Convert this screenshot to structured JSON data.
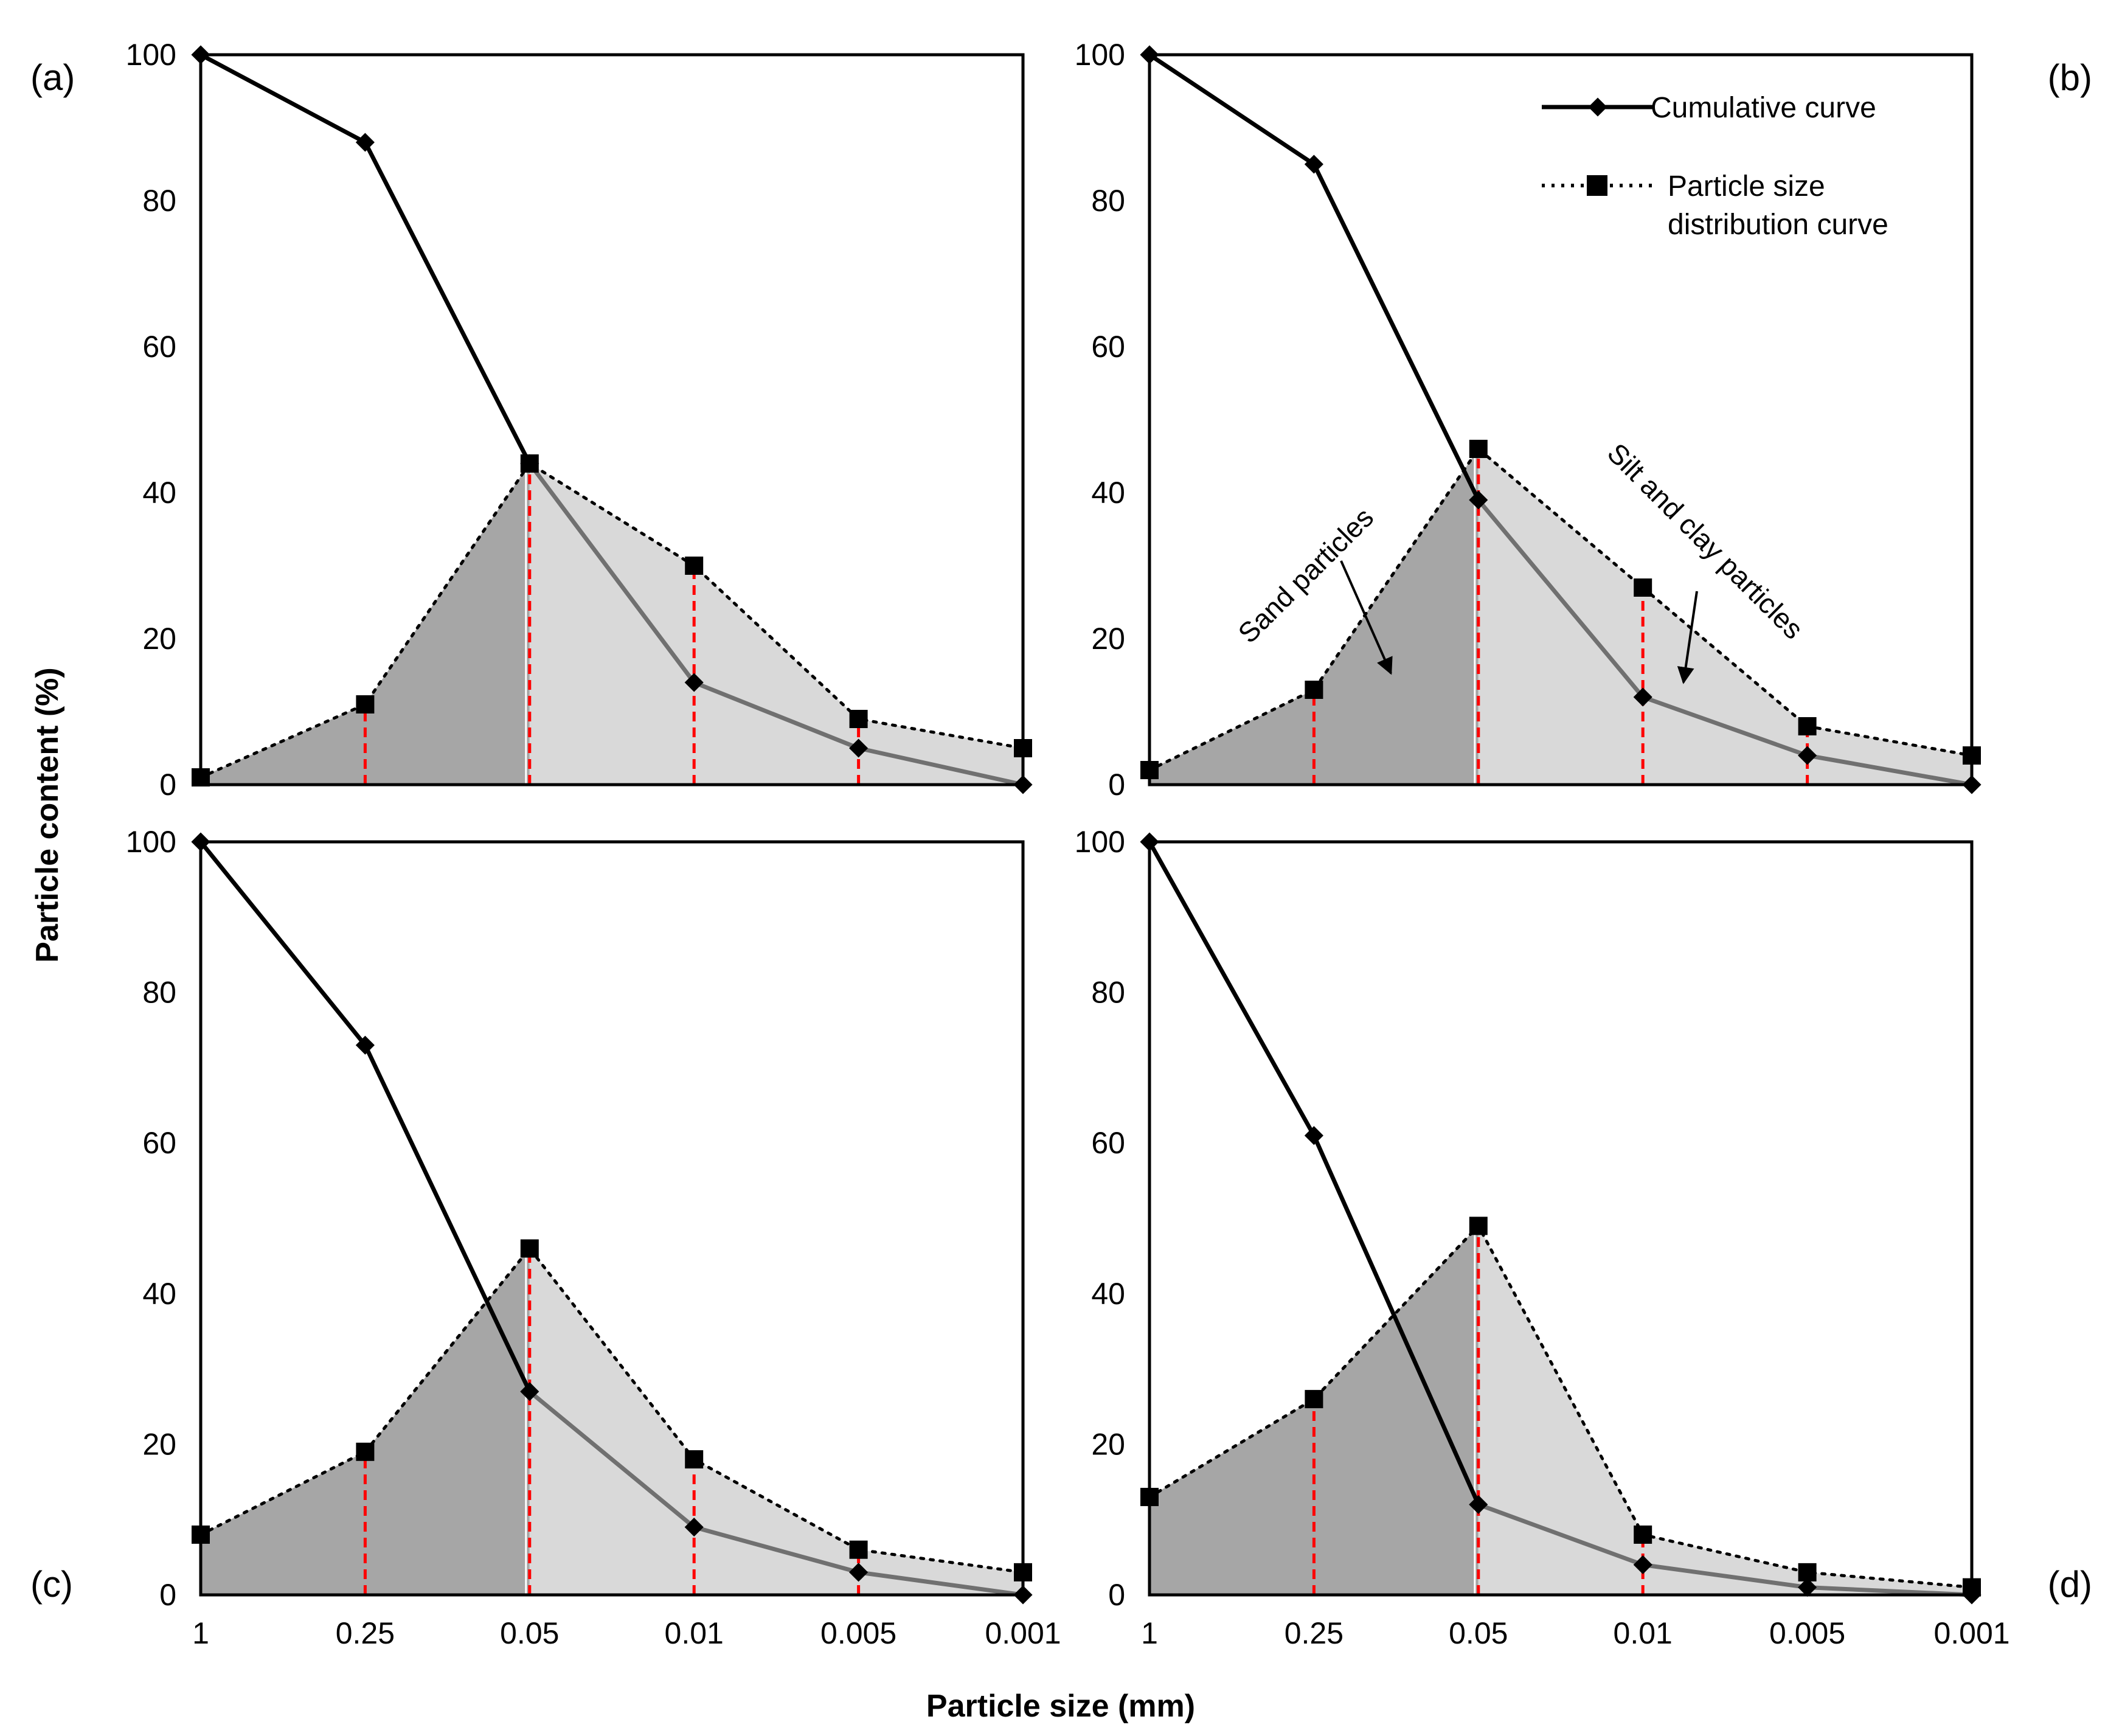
{
  "figure": {
    "xlabel": "Particle size (mm)",
    "ylabel": "Particle content (%)",
    "legend": {
      "cumulative": "Cumulative curve",
      "psd_line1": "Particle size",
      "psd_line2": "distribution curve"
    },
    "annotations": {
      "sand": "Sand particles",
      "silt_clay": "Silt and clay particles"
    },
    "colors": {
      "sand_fill": "#a6a6a6",
      "silt_fill": "#d9d9d9",
      "divider": "#ff0000",
      "cumulative_on_fill": "#707070",
      "line": "#000000"
    }
  },
  "chart_data": [
    {
      "panel": "(a)",
      "type": "line",
      "categories": [
        "1",
        "0.25",
        "0.05",
        "0.01",
        "0.005",
        "0.001"
      ],
      "xlabel": "Particle size (mm)",
      "ylabel": "Particle content (%)",
      "ylim": [
        0,
        100
      ],
      "yticks": [
        0,
        20,
        40,
        60,
        80,
        100
      ],
      "series": [
        {
          "name": "Cumulative curve",
          "values": [
            100,
            88,
            44,
            14,
            5,
            0
          ]
        },
        {
          "name": "Particle size distribution curve",
          "values": [
            1,
            11,
            44,
            30,
            9,
            5
          ]
        }
      ]
    },
    {
      "panel": "(b)",
      "type": "line",
      "categories": [
        "1",
        "0.25",
        "0.05",
        "0.01",
        "0.005",
        "0.001"
      ],
      "xlabel": "Particle size (mm)",
      "ylabel": "Particle content (%)",
      "ylim": [
        0,
        100
      ],
      "yticks": [
        0,
        20,
        40,
        60,
        80,
        100
      ],
      "series": [
        {
          "name": "Cumulative curve",
          "values": [
            100,
            85,
            39,
            12,
            4,
            0
          ]
        },
        {
          "name": "Particle size distribution curve",
          "values": [
            2,
            13,
            46,
            27,
            8,
            4
          ]
        }
      ]
    },
    {
      "panel": "(c)",
      "type": "line",
      "categories": [
        "1",
        "0.25",
        "0.05",
        "0.01",
        "0.005",
        "0.001"
      ],
      "xlabel": "Particle size (mm)",
      "ylabel": "Particle content (%)",
      "ylim": [
        0,
        100
      ],
      "yticks": [
        0,
        20,
        40,
        60,
        80,
        100
      ],
      "series": [
        {
          "name": "Cumulative curve",
          "values": [
            100,
            73,
            27,
            9,
            3,
            0
          ]
        },
        {
          "name": "Particle size distribution curve",
          "values": [
            8,
            19,
            46,
            18,
            6,
            3
          ]
        }
      ]
    },
    {
      "panel": "(d)",
      "type": "line",
      "categories": [
        "1",
        "0.25",
        "0.05",
        "0.01",
        "0.005",
        "0.001"
      ],
      "xlabel": "Particle size (mm)",
      "ylabel": "Particle content (%)",
      "ylim": [
        0,
        100
      ],
      "yticks": [
        0,
        20,
        40,
        60,
        80,
        100
      ],
      "series": [
        {
          "name": "Cumulative curve",
          "values": [
            100,
            61,
            12,
            4,
            1,
            0
          ]
        },
        {
          "name": "Particle size distribution curve",
          "values": [
            13,
            26,
            49,
            8,
            3,
            1
          ]
        }
      ]
    }
  ]
}
